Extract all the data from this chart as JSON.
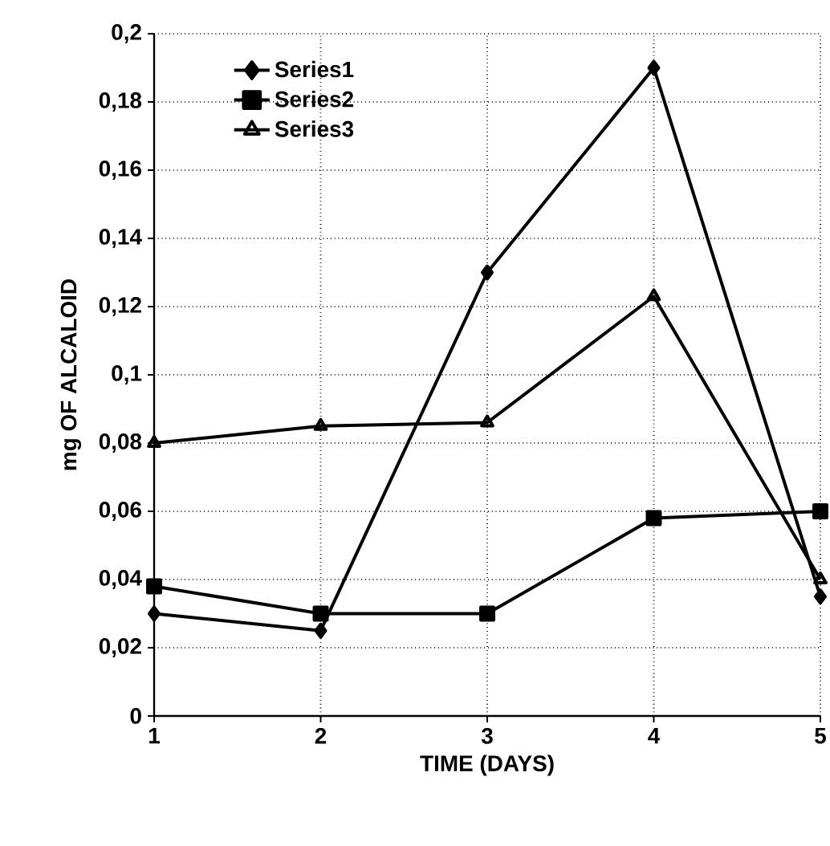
{
  "chart_data": {
    "type": "line",
    "xlabel": "TIME (DAYS)",
    "ylabel": "mg OF ALCALOID",
    "x": [
      1,
      2,
      3,
      4,
      5
    ],
    "series": [
      {
        "name": "Series1",
        "color": "#000000",
        "marker": "diamond",
        "values": [
          0.03,
          0.025,
          0.13,
          0.19,
          0.035
        ]
      },
      {
        "name": "Series2",
        "color": "#000000",
        "marker": "square",
        "values": [
          0.038,
          0.03,
          0.03,
          0.058,
          0.06
        ]
      },
      {
        "name": "Series3",
        "color": "#000000",
        "marker": "triangle",
        "values": [
          0.08,
          0.085,
          0.086,
          0.123,
          0.04
        ]
      }
    ],
    "xlim": [
      1,
      5
    ],
    "xticks": [
      1,
      2,
      3,
      4,
      5
    ],
    "ylim": [
      0,
      0.2
    ],
    "yticks": [
      0,
      {
        "value": 0.02,
        "label": "0,02"
      },
      {
        "value": 0.04,
        "label": "0,04"
      },
      {
        "value": 0.06,
        "label": "0,06"
      },
      {
        "value": 0.08,
        "label": "0,08"
      },
      {
        "value": 0.1,
        "label": "0,1"
      },
      {
        "value": 0.12,
        "label": "0,12"
      },
      {
        "value": 0.14,
        "label": "0,14"
      },
      {
        "value": 0.16,
        "label": "0,16"
      },
      {
        "value": 0.18,
        "label": "0,18"
      },
      {
        "value": 0.2,
        "label": "0,2"
      }
    ],
    "grid": true,
    "legend": "top left",
    "line_style": "solid"
  }
}
